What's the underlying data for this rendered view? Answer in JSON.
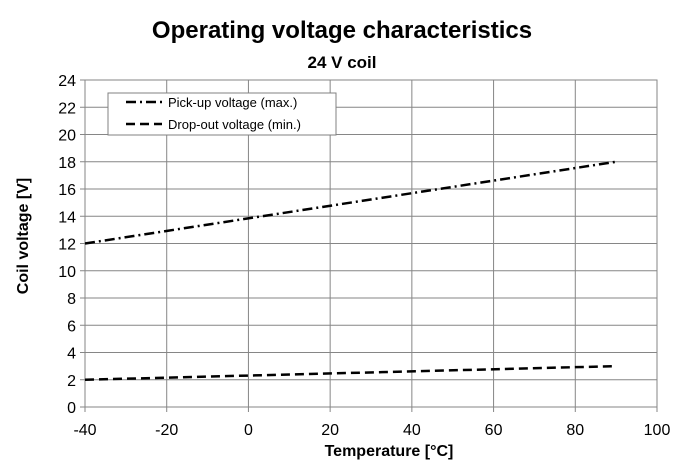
{
  "chart_data": {
    "type": "line",
    "title": "Operating voltage characteristics",
    "subtitle": "24 V coil",
    "xlabel": "Temperature [°C]",
    "ylabel": "Coil voltage [V]",
    "xlim": [
      -40,
      100
    ],
    "ylim": [
      0,
      24
    ],
    "xticks": [
      -40,
      -20,
      0,
      20,
      40,
      60,
      80,
      100
    ],
    "yticks": [
      0,
      2,
      4,
      6,
      8,
      10,
      12,
      14,
      16,
      18,
      20,
      22,
      24
    ],
    "grid": true,
    "legend_position": "top-left",
    "series": [
      {
        "name": "Pick-up voltage (max.)",
        "style": "dash-dot",
        "color": "#000000",
        "x": [
          -40,
          90
        ],
        "y": [
          12,
          18
        ]
      },
      {
        "name": "Drop-out voltage (min.)",
        "style": "dashed",
        "color": "#000000",
        "x": [
          -40,
          90
        ],
        "y": [
          2,
          3
        ]
      }
    ]
  }
}
